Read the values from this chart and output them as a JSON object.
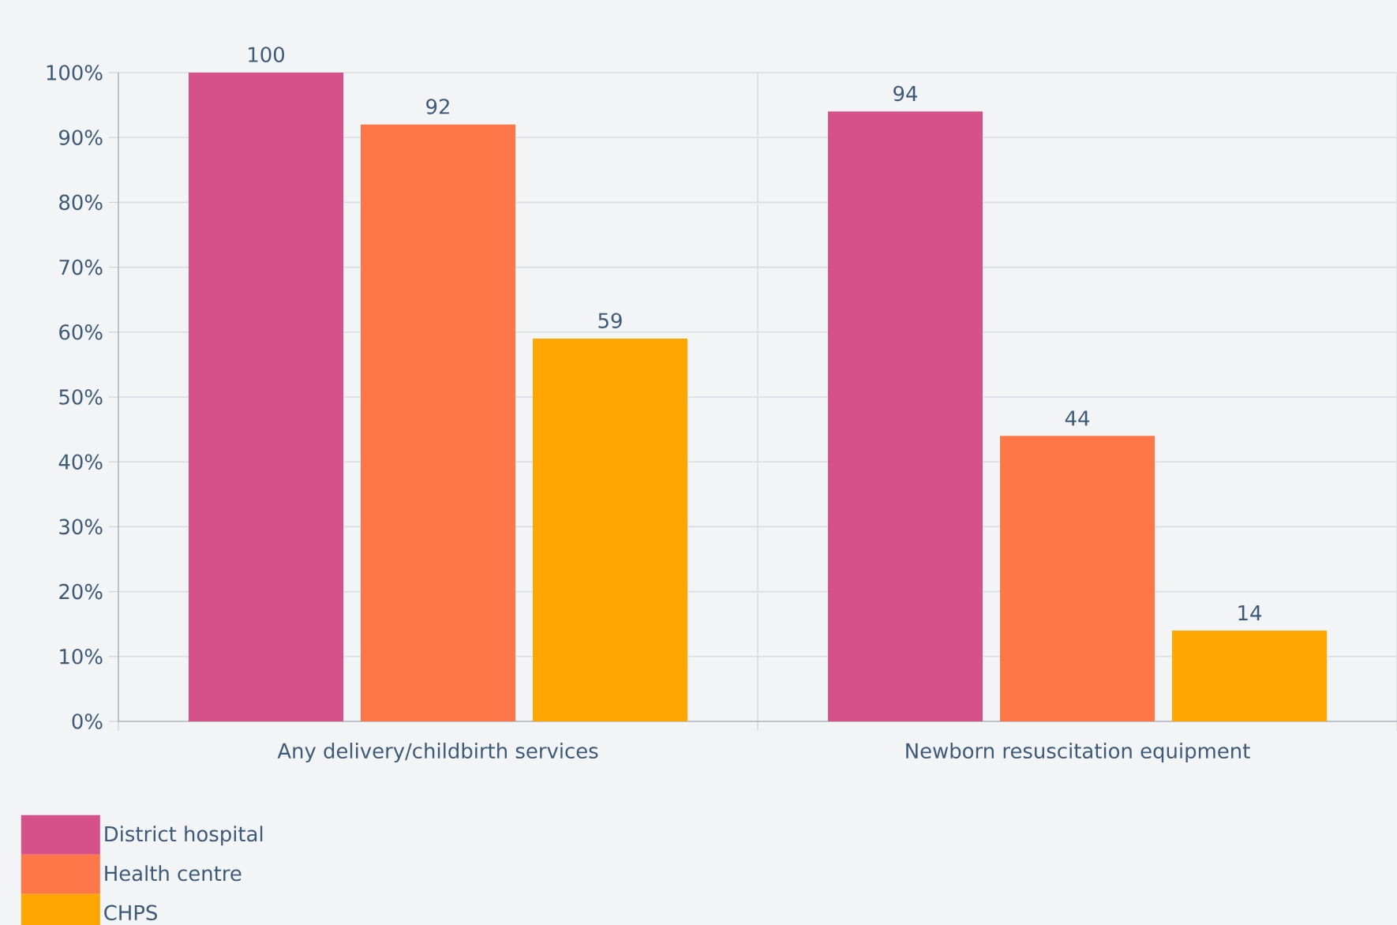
{
  "chart_data": {
    "type": "bar",
    "categories": [
      "Any delivery/childbirth services",
      "Newborn resuscitation equipment"
    ],
    "series": [
      {
        "name": "District hospital",
        "color": "#d6508a",
        "values": [
          100,
          94
        ]
      },
      {
        "name": "Health centre",
        "color": "#ff7648",
        "values": [
          92,
          44
        ]
      },
      {
        "name": "CHPS",
        "color": "#ffa600",
        "values": [
          59,
          14
        ]
      }
    ],
    "ylim": [
      0,
      100
    ],
    "yticks": [
      {
        "value": 0,
        "label": "0%"
      },
      {
        "value": 10,
        "label": "10%"
      },
      {
        "value": 20,
        "label": "20%"
      },
      {
        "value": 30,
        "label": "30%"
      },
      {
        "value": 40,
        "label": "40%"
      },
      {
        "value": 50,
        "label": "50%"
      },
      {
        "value": 60,
        "label": "60%"
      },
      {
        "value": 70,
        "label": "70%"
      },
      {
        "value": 80,
        "label": "80%"
      },
      {
        "value": 90,
        "label": "90%"
      },
      {
        "value": 100,
        "label": "100%"
      }
    ],
    "grid": true,
    "data_labels": true,
    "legend": "bottom left"
  }
}
